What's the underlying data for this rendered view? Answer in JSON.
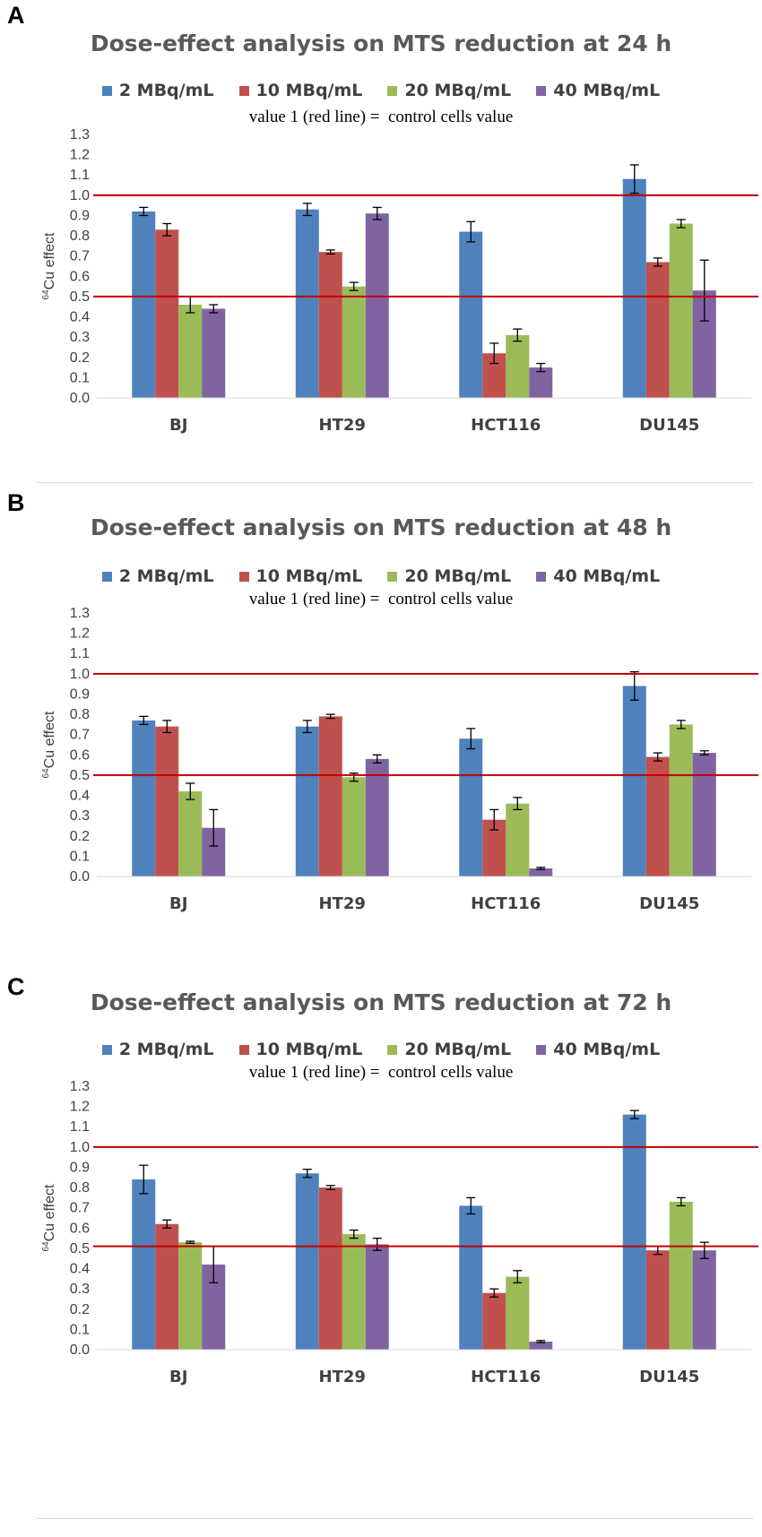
{
  "colors": {
    "series": [
      "#4F81BD",
      "#C0504D",
      "#9BBB59",
      "#8064A2"
    ],
    "refline": "#C00000",
    "grid": "#d9d9d9",
    "axis_text": "#404040"
  },
  "chart_data": [
    {
      "panel": "A",
      "type": "bar",
      "title": "Dose-effect analysis on MTS reduction at 24 h",
      "note": "value 1 (red line) =  control cells value",
      "ylabel_sup": "64",
      "ylabel": "Cu effect",
      "ylim": [
        0,
        1.3
      ],
      "yticks": [
        "0.0",
        "0.1",
        "0.2",
        "0.3",
        "0.4",
        "0.5",
        "0.6",
        "0.7",
        "0.8",
        "0.9",
        "1.0",
        "1.1",
        "1.2",
        "1.3"
      ],
      "categories": [
        "BJ",
        "HT29",
        "HCT116",
        "DU145"
      ],
      "reference_lines": [
        1.0,
        0.5
      ],
      "series": [
        {
          "name": "2 MBq/mL",
          "values": [
            0.92,
            0.93,
            0.82,
            1.08
          ],
          "errors": [
            0.02,
            0.03,
            0.05,
            0.07
          ]
        },
        {
          "name": "10 MBq/mL",
          "values": [
            0.83,
            0.72,
            0.22,
            0.67
          ],
          "errors": [
            0.03,
            0.01,
            0.05,
            0.02
          ]
        },
        {
          "name": "20 MBq/mL",
          "values": [
            0.46,
            0.55,
            0.31,
            0.86
          ],
          "errors": [
            0.04,
            0.02,
            0.03,
            0.02
          ]
        },
        {
          "name": "40 MBq/mL",
          "values": [
            0.44,
            0.91,
            0.15,
            0.53
          ],
          "errors": [
            0.02,
            0.03,
            0.02,
            0.15
          ]
        }
      ]
    },
    {
      "panel": "B",
      "type": "bar",
      "title": "Dose-effect analysis on MTS reduction at 48 h",
      "note": "value 1 (red line) =  control cells value",
      "ylabel_sup": "64",
      "ylabel": "Cu effect",
      "ylim": [
        0,
        1.3
      ],
      "yticks": [
        "0.0",
        "0.1",
        "0.2",
        "0.3",
        "0.4",
        "0.5",
        "0.6",
        "0.7",
        "0.8",
        "0.9",
        "1.0",
        "1.1",
        "1.2",
        "1.3"
      ],
      "categories": [
        "BJ",
        "HT29",
        "HCT116",
        "DU145"
      ],
      "reference_lines": [
        1.0,
        0.5
      ],
      "series": [
        {
          "name": "2 MBq/mL",
          "values": [
            0.77,
            0.74,
            0.68,
            0.94
          ],
          "errors": [
            0.02,
            0.03,
            0.05,
            0.07
          ]
        },
        {
          "name": "10 MBq/mL",
          "values": [
            0.74,
            0.79,
            0.28,
            0.59
          ],
          "errors": [
            0.03,
            0.01,
            0.05,
            0.02
          ]
        },
        {
          "name": "20 MBq/mL",
          "values": [
            0.42,
            0.49,
            0.36,
            0.75
          ],
          "errors": [
            0.04,
            0.02,
            0.03,
            0.02
          ]
        },
        {
          "name": "40 MBq/mL",
          "values": [
            0.24,
            0.58,
            0.04,
            0.61
          ],
          "errors": [
            0.09,
            0.02,
            0.005,
            0.01
          ]
        }
      ]
    },
    {
      "panel": "C",
      "type": "bar",
      "title": "Dose-effect analysis on MTS reduction at 72 h",
      "note": "value 1 (red line) =  control cells value",
      "ylabel_sup": "64",
      "ylabel": "Cu effect",
      "ylim": [
        0,
        1.3
      ],
      "yticks": [
        "0.0",
        "0.1",
        "0.2",
        "0.3",
        "0.4",
        "0.5",
        "0.6",
        "0.7",
        "0.8",
        "0.9",
        "1.0",
        "1.1",
        "1.2",
        "1.3"
      ],
      "categories": [
        "BJ",
        "HT29",
        "HCT116",
        "DU145"
      ],
      "reference_lines": [
        1.0,
        0.51
      ],
      "series": [
        {
          "name": "2 MBq/mL",
          "values": [
            0.84,
            0.87,
            0.71,
            1.16
          ],
          "errors": [
            0.07,
            0.02,
            0.04,
            0.02
          ]
        },
        {
          "name": "10 MBq/mL",
          "values": [
            0.62,
            0.8,
            0.28,
            0.49
          ],
          "errors": [
            0.02,
            0.01,
            0.02,
            0.02
          ]
        },
        {
          "name": "20 MBq/mL",
          "values": [
            0.53,
            0.57,
            0.36,
            0.73
          ],
          "errors": [
            0.005,
            0.02,
            0.03,
            0.02
          ]
        },
        {
          "name": "40 MBq/mL",
          "values": [
            0.42,
            0.52,
            0.04,
            0.49
          ],
          "errors": [
            0.09,
            0.03,
            0.005,
            0.04
          ]
        }
      ]
    }
  ]
}
